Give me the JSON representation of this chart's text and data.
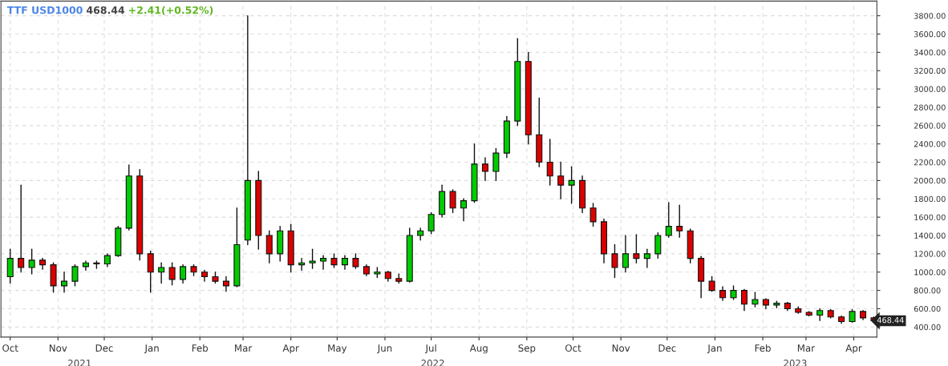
{
  "chart_data": {
    "type": "candlestick",
    "title": "TTF USD1000",
    "subtitle": "468.44",
    "x": [
      "2021-10-01",
      "2021-10-08",
      "2021-10-15",
      "2021-10-22",
      "2021-10-29",
      "2021-11-05",
      "2021-11-12",
      "2021-11-19",
      "2021-11-26",
      "2021-12-03",
      "2021-12-10",
      "2021-12-17",
      "2021-12-24",
      "2021-12-31",
      "2022-01-07",
      "2022-01-14",
      "2022-01-21",
      "2022-01-28",
      "2022-02-04",
      "2022-02-11",
      "2022-02-18",
      "2022-02-25",
      "2022-03-04",
      "2022-03-11",
      "2022-03-18",
      "2022-03-25",
      "2022-04-01",
      "2022-04-08",
      "2022-04-15",
      "2022-04-22",
      "2022-04-29",
      "2022-05-06",
      "2022-05-13",
      "2022-05-20",
      "2022-05-27",
      "2022-06-03",
      "2022-06-10",
      "2022-06-17",
      "2022-06-24",
      "2022-07-01",
      "2022-07-08",
      "2022-07-15",
      "2022-07-22",
      "2022-07-29",
      "2022-08-05",
      "2022-08-12",
      "2022-08-19",
      "2022-08-26",
      "2022-09-02",
      "2022-09-09",
      "2022-09-16",
      "2022-09-23",
      "2022-09-30",
      "2022-10-07",
      "2022-10-14",
      "2022-10-21",
      "2022-10-28",
      "2022-11-04",
      "2022-11-11",
      "2022-11-18",
      "2022-11-25",
      "2022-12-02",
      "2022-12-09",
      "2022-12-16",
      "2022-12-23",
      "2022-12-30",
      "2023-01-06",
      "2023-01-13",
      "2023-01-20",
      "2023-01-27",
      "2023-02-03",
      "2023-02-10",
      "2023-02-17",
      "2023-02-24",
      "2023-03-03",
      "2023-03-10",
      "2023-03-17",
      "2023-03-24",
      "2023-03-31",
      "2023-04-07",
      "2023-04-14"
    ],
    "ohlc": [
      [
        950,
        1250,
        880,
        1150
      ],
      [
        1150,
        1950,
        1000,
        1050
      ],
      [
        1050,
        1250,
        980,
        1130
      ],
      [
        1130,
        1150,
        1030,
        1080
      ],
      [
        1080,
        1100,
        780,
        850
      ],
      [
        850,
        1000,
        780,
        900
      ],
      [
        900,
        1080,
        850,
        1060
      ],
      [
        1060,
        1120,
        1020,
        1100
      ],
      [
        1100,
        1120,
        1040,
        1090
      ],
      [
        1090,
        1200,
        1060,
        1180
      ],
      [
        1180,
        1500,
        1170,
        1480
      ],
      [
        1480,
        2170,
        1460,
        2050
      ],
      [
        2050,
        2120,
        1130,
        1200
      ],
      [
        1200,
        1230,
        780,
        1000
      ],
      [
        1000,
        1100,
        880,
        1050
      ],
      [
        1050,
        1100,
        860,
        920
      ],
      [
        920,
        1080,
        880,
        1060
      ],
      [
        1060,
        1080,
        960,
        1000
      ],
      [
        1000,
        1020,
        900,
        950
      ],
      [
        950,
        1000,
        880,
        900
      ],
      [
        900,
        950,
        790,
        850
      ],
      [
        850,
        1700,
        840,
        1300
      ],
      [
        1350,
        3800,
        1300,
        2000
      ],
      [
        2000,
        2100,
        1250,
        1400
      ],
      [
        1400,
        1450,
        1100,
        1200
      ],
      [
        1200,
        1500,
        1120,
        1450
      ],
      [
        1450,
        1520,
        1000,
        1080
      ],
      [
        1080,
        1150,
        1020,
        1100
      ],
      [
        1100,
        1250,
        1040,
        1120
      ],
      [
        1120,
        1180,
        1030,
        1150
      ],
      [
        1150,
        1200,
        1050,
        1080
      ],
      [
        1080,
        1180,
        1030,
        1150
      ],
      [
        1150,
        1200,
        1040,
        1060
      ],
      [
        1060,
        1080,
        960,
        980
      ],
      [
        980,
        1050,
        940,
        1000
      ],
      [
        1000,
        1010,
        900,
        930
      ],
      [
        930,
        980,
        880,
        900
      ],
      [
        900,
        1480,
        890,
        1400
      ],
      [
        1400,
        1480,
        1350,
        1450
      ],
      [
        1450,
        1650,
        1420,
        1630
      ],
      [
        1630,
        1950,
        1600,
        1880
      ],
      [
        1880,
        1900,
        1650,
        1700
      ],
      [
        1700,
        1800,
        1560,
        1780
      ],
      [
        1780,
        2400,
        1760,
        2180
      ],
      [
        2180,
        2250,
        2000,
        2100
      ],
      [
        2100,
        2350,
        2000,
        2300
      ],
      [
        2300,
        2700,
        2250,
        2650
      ],
      [
        2650,
        3550,
        2600,
        3300
      ],
      [
        3300,
        3400,
        2400,
        2500
      ],
      [
        2500,
        2900,
        2150,
        2200
      ],
      [
        2200,
        2450,
        1950,
        2050
      ],
      [
        2050,
        2200,
        1800,
        1950
      ],
      [
        1950,
        2150,
        1750,
        2000
      ],
      [
        2000,
        2050,
        1650,
        1700
      ],
      [
        1700,
        1750,
        1500,
        1550
      ],
      [
        1550,
        1580,
        1100,
        1200
      ],
      [
        1200,
        1300,
        940,
        1050
      ],
      [
        1050,
        1400,
        1000,
        1200
      ],
      [
        1200,
        1410,
        1100,
        1150
      ],
      [
        1150,
        1250,
        1050,
        1200
      ],
      [
        1200,
        1430,
        1150,
        1400
      ],
      [
        1400,
        1760,
        1380,
        1500
      ],
      [
        1500,
        1730,
        1380,
        1450
      ],
      [
        1450,
        1470,
        1100,
        1150
      ],
      [
        1150,
        1170,
        720,
        900
      ],
      [
        900,
        950,
        790,
        800
      ],
      [
        800,
        840,
        690,
        720
      ],
      [
        720,
        850,
        700,
        800
      ],
      [
        800,
        810,
        580,
        650
      ],
      [
        650,
        780,
        620,
        700
      ],
      [
        700,
        710,
        600,
        640
      ],
      [
        640,
        680,
        610,
        660
      ],
      [
        660,
        670,
        580,
        600
      ],
      [
        600,
        620,
        550,
        560
      ],
      [
        560,
        570,
        520,
        530
      ],
      [
        530,
        600,
        470,
        580
      ],
      [
        580,
        590,
        500,
        510
      ],
      [
        510,
        520,
        440,
        460
      ],
      [
        460,
        590,
        450,
        570
      ],
      [
        570,
        580,
        480,
        500
      ],
      [
        500,
        510,
        460,
        468.44
      ]
    ],
    "colors": [
      "#00cc00",
      "#dd0000",
      "#00cc00",
      "#dd0000",
      "#dd0000",
      "#00cc00",
      "#00cc00",
      "#00cc00",
      "#dd0000",
      "#00cc00",
      "#00cc00",
      "#00cc00",
      "#dd0000",
      "#dd0000",
      "#00cc00",
      "#dd0000",
      "#00cc00",
      "#dd0000",
      "#dd0000",
      "#dd0000",
      "#dd0000",
      "#00cc00",
      "#00cc00",
      "#dd0000",
      "#dd0000",
      "#00cc00",
      "#dd0000",
      "#00cc00",
      "#00cc00",
      "#00cc00",
      "#dd0000",
      "#00cc00",
      "#dd0000",
      "#dd0000",
      "#00cc00",
      "#dd0000",
      "#dd0000",
      "#00cc00",
      "#00cc00",
      "#00cc00",
      "#00cc00",
      "#dd0000",
      "#00cc00",
      "#00cc00",
      "#dd0000",
      "#00cc00",
      "#00cc00",
      "#00cc00",
      "#dd0000",
      "#dd0000",
      "#dd0000",
      "#dd0000",
      "#00cc00",
      "#dd0000",
      "#dd0000",
      "#dd0000",
      "#dd0000",
      "#00cc00",
      "#dd0000",
      "#00cc00",
      "#00cc00",
      "#00cc00",
      "#dd0000",
      "#dd0000",
      "#dd0000",
      "#dd0000",
      "#dd0000",
      "#00cc00",
      "#dd0000",
      "#00cc00",
      "#dd0000",
      "#00cc00",
      "#dd0000",
      "#dd0000",
      "#dd0000",
      "#00cc00",
      "#dd0000",
      "#dd0000",
      "#00cc00",
      "#dd0000",
      "#dd0000"
    ],
    "xlim": [
      "2021-09-25",
      "2023-04-16"
    ],
    "xticks": [
      {
        "value": "2021-10-01",
        "label": "Oct"
      },
      {
        "value": "2021-11-01",
        "label": "Nov"
      },
      {
        "value": "2021-12-01",
        "label": "Dec"
      },
      {
        "value": "2022-01-01",
        "label": "Jan"
      },
      {
        "value": "2022-02-01",
        "label": "Feb"
      },
      {
        "value": "2022-03-01",
        "label": "Mar"
      },
      {
        "value": "2022-04-01",
        "label": "Apr"
      },
      {
        "value": "2022-05-01",
        "label": "May"
      },
      {
        "value": "2022-06-01",
        "label": "Jun"
      },
      {
        "value": "2022-07-01",
        "label": "Jul"
      },
      {
        "value": "2022-08-01",
        "label": "Aug"
      },
      {
        "value": "2022-09-01",
        "label": "Sep"
      },
      {
        "value": "2022-10-01",
        "label": "Oct"
      },
      {
        "value": "2022-11-01",
        "label": "Nov"
      },
      {
        "value": "2022-12-01",
        "label": "Dec"
      },
      {
        "value": "2023-01-01",
        "label": "Jan"
      },
      {
        "value": "2023-02-01",
        "label": "Feb"
      },
      {
        "value": "2023-03-01",
        "label": "Mar"
      },
      {
        "value": "2023-04-01",
        "label": "Apr"
      }
    ],
    "x2lim": [
      "2021-09-25",
      "2023-04-16"
    ],
    "x2ticks": [
      {
        "value": "2021-11-15",
        "label": "2021"
      },
      {
        "value": "2022-07-02",
        "label": "2022"
      },
      {
        "value": "2023-02-22",
        "label": "2023"
      }
    ],
    "ylim": [
      290,
      3960
    ],
    "yticks": [
      {
        "value": 400,
        "label": "400.00"
      },
      {
        "value": 600,
        "label": "600.00"
      },
      {
        "value": 800,
        "label": "800.00"
      },
      {
        "value": 1000,
        "label": "1000.00"
      },
      {
        "value": 1200,
        "label": "1200.00"
      },
      {
        "value": 1400,
        "label": "1400.00"
      },
      {
        "value": 1600,
        "label": "1600.00"
      },
      {
        "value": 1800,
        "label": "1800.00"
      },
      {
        "value": 2000,
        "label": "2000.00"
      },
      {
        "value": 2200,
        "label": "2200.00"
      },
      {
        "value": 2400,
        "label": "2400.00"
      },
      {
        "value": 2600,
        "label": "2600.00"
      },
      {
        "value": 2800,
        "label": "2800.00"
      },
      {
        "value": 3000,
        "label": "3000.00"
      },
      {
        "value": 3200,
        "label": "3200.00"
      },
      {
        "value": 3400,
        "label": "3400.00"
      },
      {
        "value": 3600,
        "label": "3600.00"
      },
      {
        "value": 3800,
        "label": "3800.00"
      }
    ],
    "annotations": [
      "+2.41(+0.52%)",
      {
        "text": "468.44",
        "x": "2023-04-14",
        "y": 468.44
      }
    ],
    "grid": true
  }
}
